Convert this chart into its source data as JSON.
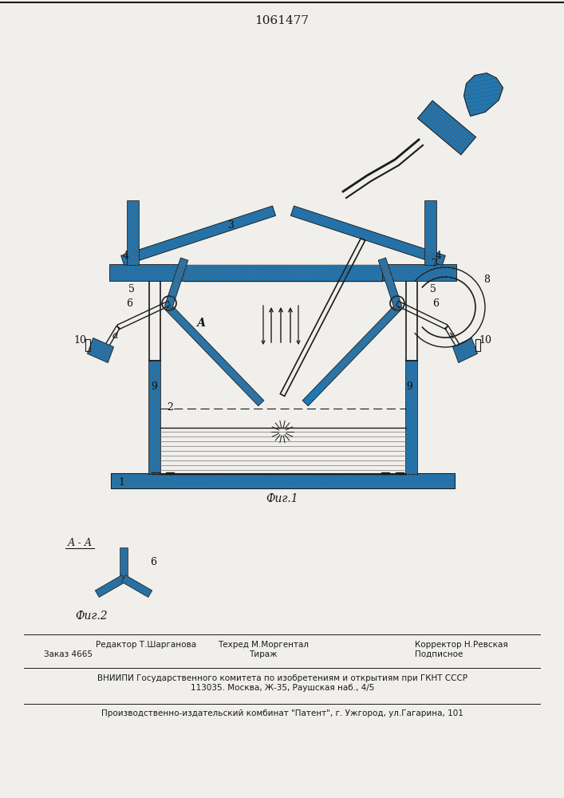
{
  "patent_number": "1061477",
  "fig1_caption": "Фиг.1",
  "fig2_caption": "Фиг.2",
  "section_label": "А - А",
  "editor_label": "Редактор",
  "editor_name": "Т.Шарганова",
  "techred_label": "Техред",
  "techred_name": "М.Моргентал",
  "corrector_label": "Корректор",
  "corrector_name": "Н.Ревская",
  "order_label": "Заказ 4665",
  "tirazh_label": "Тираж",
  "podpisnoe_label": "Подписное",
  "vniiipi_line1": "ВНИИПИ Государственного комитета по изобретениям и открытиям при ГКНТ СССР",
  "vniiipi_line2": "113035. Москва, Ж-35, Раушская наб., 4/5",
  "factory_line": "Производственно-издательский комбинат \"Патент\", г. Ужгород, ул.Гагарина, 101",
  "bg_color": "#f0efeb",
  "line_color": "#1a1a1a",
  "label_color": "#111111"
}
